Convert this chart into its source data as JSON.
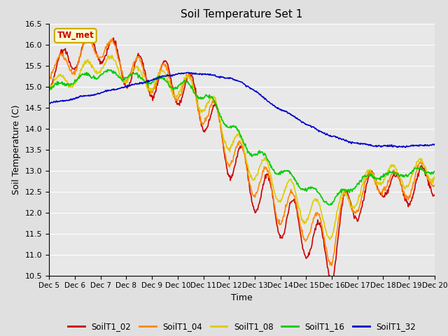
{
  "title": "Soil Temperature Set 1",
  "xlabel": "Time",
  "ylabel": "Soil Temperature (C)",
  "ylim": [
    10.5,
    16.5
  ],
  "yticks": [
    10.5,
    11.0,
    11.5,
    12.0,
    12.5,
    13.0,
    13.5,
    14.0,
    14.5,
    15.0,
    15.5,
    16.0,
    16.5
  ],
  "xtick_labels": [
    "Dec 5",
    "Dec 6",
    "Dec 7",
    "Dec 8",
    "Dec 9",
    "Dec 10",
    "Dec 11",
    "Dec 12",
    "Dec 13",
    "Dec 14",
    "Dec 15",
    "Dec 16",
    "Dec 17",
    "Dec 18",
    "Dec 19",
    "Dec 20"
  ],
  "background_color": "#e0e0e0",
  "plot_bg_color": "#e8e8e8",
  "grid_color": "#ffffff",
  "annotation_text": "TW_met",
  "annotation_bg": "#ffffcc",
  "annotation_border": "#ccaa00",
  "annotation_text_color": "#cc0000",
  "series": {
    "SoilT1_02": {
      "color": "#cc0000",
      "linewidth": 1.2
    },
    "SoilT1_04": {
      "color": "#ff8800",
      "linewidth": 1.2
    },
    "SoilT1_08": {
      "color": "#ddcc00",
      "linewidth": 1.2
    },
    "SoilT1_16": {
      "color": "#00cc00",
      "linewidth": 1.2
    },
    "SoilT1_32": {
      "color": "#0000cc",
      "linewidth": 1.2
    }
  }
}
